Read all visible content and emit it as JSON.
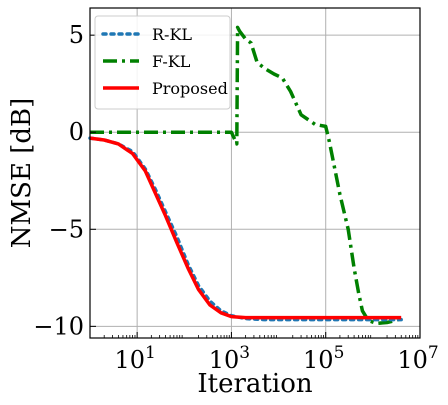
{
  "chart_data": {
    "type": "line",
    "xlabel": "Iteration",
    "ylabel": "NMSE [dB]",
    "xscale": "log",
    "xlim": [
      1,
      10000000
    ],
    "ylim": [
      -10.6,
      6.4
    ],
    "grid": true,
    "legend_position": "top-left",
    "x_ticks": [
      {
        "value": 10,
        "base": "10",
        "exp": "1"
      },
      {
        "value": 1000,
        "base": "10",
        "exp": "3"
      },
      {
        "value": 100000,
        "base": "10",
        "exp": "5"
      },
      {
        "value": 10000000,
        "base": "10",
        "exp": "7"
      }
    ],
    "y_ticks": [
      {
        "value": 5,
        "label": "5"
      },
      {
        "value": 0,
        "label": "0"
      },
      {
        "value": -5,
        "label": "−5"
      },
      {
        "value": -10,
        "label": "−10"
      }
    ],
    "series": [
      {
        "name": "R-KL",
        "color": "#1f77b4",
        "style": "dotted",
        "points": [
          [
            1,
            -0.3
          ],
          [
            2,
            -0.4
          ],
          [
            4,
            -0.6
          ],
          [
            8,
            -1.0
          ],
          [
            15,
            -1.9
          ],
          [
            25,
            -3.0
          ],
          [
            40,
            -4.1
          ],
          [
            70,
            -5.4
          ],
          [
            120,
            -6.8
          ],
          [
            200,
            -7.9
          ],
          [
            350,
            -8.7
          ],
          [
            600,
            -9.2
          ],
          [
            1000,
            -9.45
          ],
          [
            2000,
            -9.6
          ],
          [
            5000,
            -9.65
          ],
          [
            20000,
            -9.65
          ],
          [
            100000,
            -9.65
          ],
          [
            1000000,
            -9.65
          ],
          [
            4000000,
            -9.65
          ]
        ]
      },
      {
        "name": "F-KL",
        "color": "#008000",
        "style": "dashdot",
        "points": [
          [
            1,
            0.0
          ],
          [
            1000,
            0.0
          ],
          [
            1300,
            -0.6
          ],
          [
            1350,
            5.4
          ],
          [
            1500,
            5.2
          ],
          [
            2000,
            4.8
          ],
          [
            2600,
            4.6
          ],
          [
            3500,
            3.6
          ],
          [
            5000,
            3.3
          ],
          [
            8000,
            3.0
          ],
          [
            12000,
            2.8
          ],
          [
            18000,
            2.1
          ],
          [
            30000,
            0.9
          ],
          [
            60000,
            0.4
          ],
          [
            100000,
            0.3
          ],
          [
            120000,
            -0.5
          ],
          [
            200000,
            -3.2
          ],
          [
            300000,
            -5.0
          ],
          [
            400000,
            -7.0
          ],
          [
            500000,
            -8.3
          ],
          [
            600000,
            -9.2
          ],
          [
            800000,
            -9.7
          ],
          [
            1200000,
            -9.85
          ],
          [
            2000000,
            -9.8
          ],
          [
            3000000,
            -9.7
          ],
          [
            4000000,
            -9.6
          ]
        ]
      },
      {
        "name": "Proposed",
        "color": "#ff0000",
        "style": "solid",
        "points": [
          [
            1,
            -0.3
          ],
          [
            2,
            -0.4
          ],
          [
            4,
            -0.6
          ],
          [
            8,
            -1.1
          ],
          [
            15,
            -2.0
          ],
          [
            25,
            -3.2
          ],
          [
            40,
            -4.3
          ],
          [
            70,
            -5.7
          ],
          [
            120,
            -7.0
          ],
          [
            200,
            -8.1
          ],
          [
            350,
            -8.9
          ],
          [
            600,
            -9.3
          ],
          [
            1000,
            -9.5
          ],
          [
            2000,
            -9.55
          ],
          [
            5000,
            -9.55
          ],
          [
            100000,
            -9.55
          ],
          [
            1000000,
            -9.55
          ],
          [
            4000000,
            -9.55
          ]
        ]
      }
    ]
  }
}
